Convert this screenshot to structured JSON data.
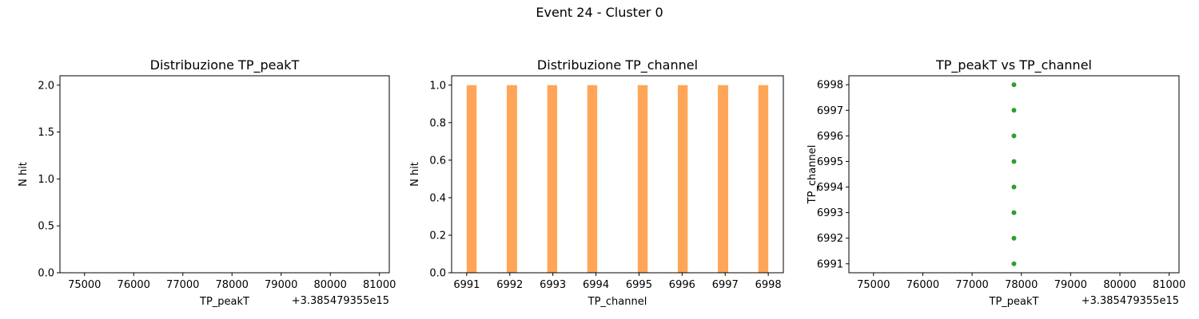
{
  "figure": {
    "suptitle": "Event 24 - Cluster 0"
  },
  "chart_data": [
    {
      "type": "bar",
      "title": "Distribuzione TP_peakT",
      "xlabel": "TP_peakT",
      "ylabel": "N hit",
      "offset_label": "+3.385479355e15",
      "xlim": [
        74500,
        81200
      ],
      "ylim": [
        0,
        2.1
      ],
      "xticks": [
        75000,
        76000,
        77000,
        78000,
        79000,
        80000,
        81000
      ],
      "xtick_labels": [
        "75000",
        "76000",
        "77000",
        "78000",
        "79000",
        "80000",
        "81000"
      ],
      "yticks": [
        0,
        0.5,
        1.0,
        1.5,
        2.0
      ],
      "ytick_labels": [
        "0.0",
        "0.5",
        "1.0",
        "1.5",
        "2.0"
      ],
      "bars": [],
      "color": "#1f77b4"
    },
    {
      "type": "bar",
      "title": "Distribuzione TP_channel",
      "xlabel": "TP_channel",
      "ylabel": "N hit",
      "xlim": [
        6990.65,
        6998.35
      ],
      "ylim": [
        0,
        1.05
      ],
      "xticks": [
        6991,
        6992,
        6993,
        6994,
        6995,
        6996,
        6997,
        6998
      ],
      "xtick_labels": [
        "6991",
        "6992",
        "6993",
        "6994",
        "6995",
        "6996",
        "6997",
        "6998"
      ],
      "yticks": [
        0,
        0.2,
        0.4,
        0.6,
        0.8,
        1.0
      ],
      "ytick_labels": [
        "0.0",
        "0.2",
        "0.4",
        "0.6",
        "0.8",
        "1.0"
      ],
      "bars": [
        {
          "x0": 6991.0,
          "x1": 6991.23,
          "value": 1
        },
        {
          "x0": 6991.93,
          "x1": 6992.17,
          "value": 1
        },
        {
          "x0": 6992.87,
          "x1": 6993.1,
          "value": 1
        },
        {
          "x0": 6993.8,
          "x1": 6994.03,
          "value": 1
        },
        {
          "x0": 6994.97,
          "x1": 6995.2,
          "value": 1
        },
        {
          "x0": 6995.9,
          "x1": 6996.13,
          "value": 1
        },
        {
          "x0": 6996.83,
          "x1": 6997.07,
          "value": 1
        },
        {
          "x0": 6997.77,
          "x1": 6998.0,
          "value": 1
        }
      ],
      "color": "#ffa557"
    },
    {
      "type": "scatter",
      "title": "TP_peakT vs TP_channel",
      "xlabel": "TP_peakT",
      "ylabel": "TP_channel",
      "offset_label": "+3.385479355e15",
      "xlim": [
        74500,
        81200
      ],
      "ylim": [
        6990.65,
        6998.35
      ],
      "xticks": [
        75000,
        76000,
        77000,
        78000,
        79000,
        80000,
        81000
      ],
      "xtick_labels": [
        "75000",
        "76000",
        "77000",
        "78000",
        "79000",
        "80000",
        "81000"
      ],
      "yticks": [
        6991,
        6992,
        6993,
        6994,
        6995,
        6996,
        6997,
        6998
      ],
      "ytick_labels": [
        "6991",
        "6992",
        "6993",
        "6994",
        "6995",
        "6996",
        "6997",
        "6998"
      ],
      "points": [
        {
          "x": 77850,
          "y": 6991
        },
        {
          "x": 77850,
          "y": 6992
        },
        {
          "x": 77850,
          "y": 6993
        },
        {
          "x": 77850,
          "y": 6994
        },
        {
          "x": 77850,
          "y": 6995
        },
        {
          "x": 77850,
          "y": 6996
        },
        {
          "x": 77850,
          "y": 6997
        },
        {
          "x": 77850,
          "y": 6998
        }
      ],
      "color": "#2ca02c"
    }
  ]
}
